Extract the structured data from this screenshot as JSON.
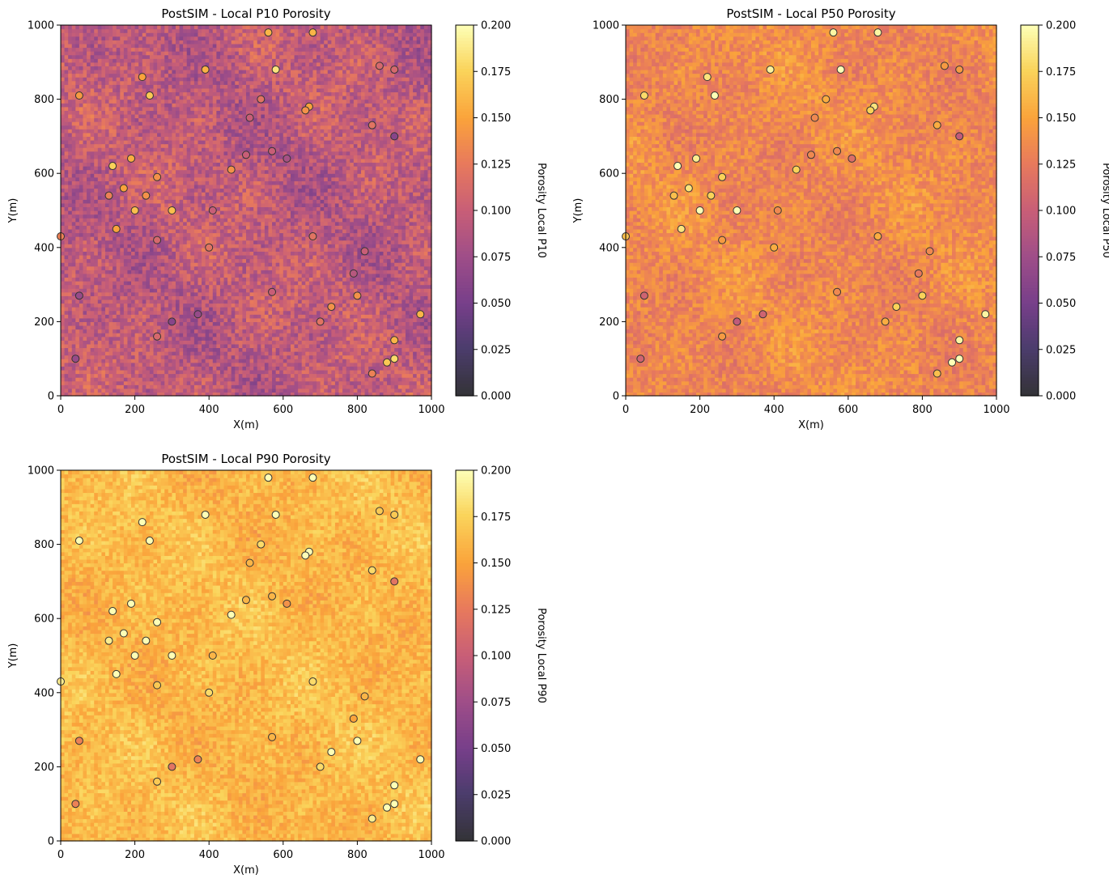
{
  "chart_data": [
    {
      "type": "heatmap",
      "title": "PostSIM - Local P10 Porosity",
      "xlabel": "X(m)",
      "ylabel": "Y(m)",
      "xlim": [
        0,
        1000
      ],
      "ylim": [
        0,
        1000
      ],
      "xticks": [
        0,
        200,
        400,
        600,
        800,
        1000
      ],
      "yticks": [
        0,
        200,
        400,
        600,
        800,
        1000
      ],
      "colorbar": {
        "label": "Porosity Local P10",
        "min": 0.0,
        "max": 0.2,
        "ticks": [
          "0.000",
          "0.025",
          "0.050",
          "0.075",
          "0.100",
          "0.125",
          "0.150",
          "0.175",
          "0.200"
        ],
        "colormap": "inferno"
      },
      "grid": {
        "nx": 100,
        "ny": 100,
        "mean": 0.095,
        "spread": 0.03
      },
      "wells_color_by": "local P10 value"
    },
    {
      "type": "heatmap",
      "title": "PostSIM - Local P50 Porosity",
      "xlabel": "X(m)",
      "ylabel": "Y(m)",
      "xlim": [
        0,
        1000
      ],
      "ylim": [
        0,
        1000
      ],
      "xticks": [
        0,
        200,
        400,
        600,
        800,
        1000
      ],
      "yticks": [
        0,
        200,
        400,
        600,
        800,
        1000
      ],
      "colorbar": {
        "label": "Porosity Local P50",
        "min": 0.0,
        "max": 0.2,
        "ticks": [
          "0.000",
          "0.025",
          "0.050",
          "0.075",
          "0.100",
          "0.125",
          "0.150",
          "0.175",
          "0.200"
        ],
        "colormap": "inferno"
      },
      "grid": {
        "nx": 100,
        "ny": 100,
        "mean": 0.135,
        "spread": 0.02
      },
      "wells_color_by": "local P50 value"
    },
    {
      "type": "heatmap",
      "title": "PostSIM - Local P90 Porosity",
      "xlabel": "X(m)",
      "ylabel": "Y(m)",
      "xlim": [
        0,
        1000
      ],
      "ylim": [
        0,
        1000
      ],
      "xticks": [
        0,
        200,
        400,
        600,
        800,
        1000
      ],
      "yticks": [
        0,
        200,
        400,
        600,
        800,
        1000
      ],
      "colorbar": {
        "label": "Porosity Local P90",
        "min": 0.0,
        "max": 0.2,
        "ticks": [
          "0.000",
          "0.025",
          "0.050",
          "0.075",
          "0.100",
          "0.125",
          "0.150",
          "0.175",
          "0.200"
        ],
        "colormap": "inferno"
      },
      "grid": {
        "nx": 100,
        "ny": 100,
        "mean": 0.162,
        "spread": 0.018
      },
      "wells_color_by": "local P90 value"
    }
  ],
  "wells": [
    {
      "x": 560,
      "y": 980,
      "v": 0.16
    },
    {
      "x": 680,
      "y": 980,
      "v": 0.16
    },
    {
      "x": 390,
      "y": 880,
      "v": 0.158
    },
    {
      "x": 580,
      "y": 880,
      "v": 0.185
    },
    {
      "x": 860,
      "y": 890,
      "v": 0.11
    },
    {
      "x": 900,
      "y": 880,
      "v": 0.11
    },
    {
      "x": 220,
      "y": 860,
      "v": 0.15
    },
    {
      "x": 50,
      "y": 810,
      "v": 0.145
    },
    {
      "x": 240,
      "y": 810,
      "v": 0.17
    },
    {
      "x": 540,
      "y": 800,
      "v": 0.12
    },
    {
      "x": 670,
      "y": 780,
      "v": 0.15
    },
    {
      "x": 660,
      "y": 770,
      "v": 0.14
    },
    {
      "x": 510,
      "y": 750,
      "v": 0.1
    },
    {
      "x": 840,
      "y": 730,
      "v": 0.12
    },
    {
      "x": 900,
      "y": 700,
      "v": 0.06
    },
    {
      "x": 570,
      "y": 660,
      "v": 0.1
    },
    {
      "x": 500,
      "y": 650,
      "v": 0.1
    },
    {
      "x": 610,
      "y": 640,
      "v": 0.08
    },
    {
      "x": 190,
      "y": 640,
      "v": 0.155
    },
    {
      "x": 140,
      "y": 620,
      "v": 0.175
    },
    {
      "x": 460,
      "y": 610,
      "v": 0.14
    },
    {
      "x": 260,
      "y": 590,
      "v": 0.14
    },
    {
      "x": 170,
      "y": 560,
      "v": 0.15
    },
    {
      "x": 130,
      "y": 540,
      "v": 0.13
    },
    {
      "x": 230,
      "y": 540,
      "v": 0.14
    },
    {
      "x": 200,
      "y": 500,
      "v": 0.165
    },
    {
      "x": 300,
      "y": 500,
      "v": 0.165
    },
    {
      "x": 410,
      "y": 500,
      "v": 0.1
    },
    {
      "x": 150,
      "y": 450,
      "v": 0.15
    },
    {
      "x": 0,
      "y": 430,
      "v": 0.13
    },
    {
      "x": 680,
      "y": 430,
      "v": 0.12
    },
    {
      "x": 260,
      "y": 420,
      "v": 0.11
    },
    {
      "x": 400,
      "y": 400,
      "v": 0.12
    },
    {
      "x": 820,
      "y": 390,
      "v": 0.1
    },
    {
      "x": 790,
      "y": 330,
      "v": 0.09
    },
    {
      "x": 570,
      "y": 280,
      "v": 0.1
    },
    {
      "x": 50,
      "y": 270,
      "v": 0.07
    },
    {
      "x": 800,
      "y": 270,
      "v": 0.14
    },
    {
      "x": 730,
      "y": 240,
      "v": 0.14
    },
    {
      "x": 370,
      "y": 220,
      "v": 0.07
    },
    {
      "x": 970,
      "y": 220,
      "v": 0.16
    },
    {
      "x": 300,
      "y": 200,
      "v": 0.06
    },
    {
      "x": 700,
      "y": 200,
      "v": 0.12
    },
    {
      "x": 260,
      "y": 160,
      "v": 0.11
    },
    {
      "x": 900,
      "y": 150,
      "v": 0.16
    },
    {
      "x": 40,
      "y": 100,
      "v": 0.07
    },
    {
      "x": 900,
      "y": 100,
      "v": 0.18
    },
    {
      "x": 880,
      "y": 90,
      "v": 0.17
    },
    {
      "x": 840,
      "y": 60,
      "v": 0.13
    }
  ]
}
